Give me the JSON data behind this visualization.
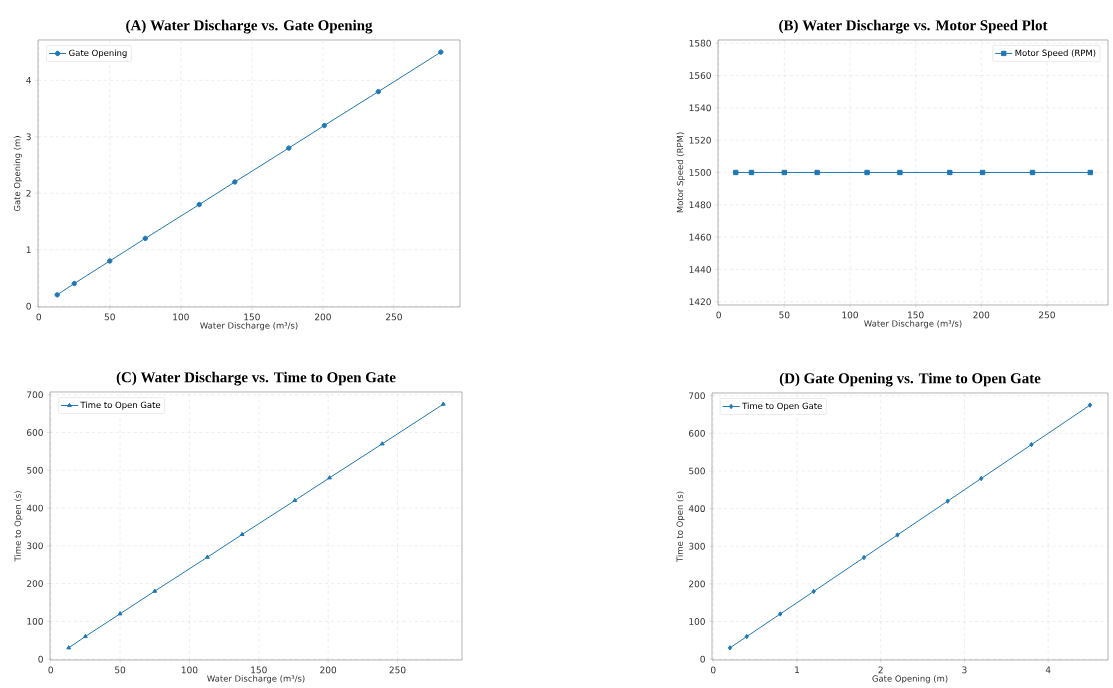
{
  "chart_data": [
    {
      "type": "line",
      "title": "(A) Water Discharge vs. Gate Opening",
      "xlabel": "Water Discharge (m³/s)",
      "ylabel": "Gate Opening (m)",
      "x": [
        13,
        25,
        50,
        75,
        113,
        138,
        176,
        201,
        239,
        283
      ],
      "series": [
        {
          "name": "Gate Opening",
          "color": "#1f77b4",
          "values": [
            0.2,
            0.4,
            0.8,
            1.2,
            1.8,
            2.2,
            2.8,
            3.2,
            3.8,
            4.5
          ]
        }
      ],
      "xlim": [
        -0.5,
        296.5
      ],
      "ylim": [
        -0.015,
        4.715
      ],
      "xticks": [
        0,
        50,
        100,
        150,
        200,
        250
      ],
      "yticks": [
        0,
        1,
        2,
        3,
        4
      ],
      "grid": true,
      "legend": "top left",
      "marker": "circle"
    },
    {
      "type": "line",
      "title": "(B) Water Discharge vs. Motor Speed Plot",
      "xlabel": "Water Discharge (m³/s)",
      "ylabel": "Motor Speed (RPM)",
      "x": [
        13,
        25,
        50,
        75,
        113,
        138,
        176,
        201,
        239,
        283
      ],
      "series": [
        {
          "name": "Motor Speed (RPM)",
          "color": "#1f77b4",
          "values": [
            1500,
            1500,
            1500,
            1500,
            1500,
            1500,
            1500,
            1500,
            1500,
            1500
          ]
        }
      ],
      "xlim": [
        -0.5,
        296.5
      ],
      "ylim": [
        1418,
        1582
      ],
      "xticks": [
        0,
        50,
        100,
        150,
        200,
        250
      ],
      "yticks": [
        1420,
        1440,
        1460,
        1480,
        1500,
        1520,
        1540,
        1560,
        1580
      ],
      "grid": true,
      "legend": "top right",
      "marker": "square"
    },
    {
      "type": "line",
      "title": "(C) Water Discharge vs. Time to Open Gate",
      "xlabel": "Water Discharge (m³/s)",
      "ylabel": "Time to Open (s)",
      "x": [
        13,
        25,
        50,
        75,
        113,
        138,
        176,
        201,
        239,
        283
      ],
      "series": [
        {
          "name": "Time to Open Gate",
          "color": "#1f77b4",
          "values": [
            30,
            60,
            120,
            180,
            270,
            330,
            420,
            480,
            570,
            675
          ]
        }
      ],
      "xlim": [
        -0.5,
        296.5
      ],
      "ylim": [
        -2.25,
        707.25
      ],
      "xticks": [
        0,
        50,
        100,
        150,
        200,
        250
      ],
      "yticks": [
        0,
        100,
        200,
        300,
        400,
        500,
        600,
        700
      ],
      "grid": true,
      "legend": "top left",
      "marker": "triangle"
    },
    {
      "type": "line",
      "title": "(D) Gate Opening vs. Time to Open Gate",
      "xlabel": "Gate Opening (m)",
      "ylabel": "Time to Open (s)",
      "x": [
        0.2,
        0.4,
        0.8,
        1.2,
        1.8,
        2.2,
        2.8,
        3.2,
        3.8,
        4.5
      ],
      "series": [
        {
          "name": "Time to Open Gate",
          "color": "#1f77b4",
          "values": [
            30,
            60,
            120,
            180,
            270,
            330,
            420,
            480,
            570,
            675
          ]
        }
      ],
      "xlim": [
        -0.015,
        4.715
      ],
      "ylim": [
        -2.25,
        707.25
      ],
      "xticks": [
        0,
        1,
        2,
        3,
        4
      ],
      "yticks": [
        0,
        100,
        200,
        300,
        400,
        500,
        600,
        700
      ],
      "grid": true,
      "legend": "top left",
      "marker": "diamond"
    }
  ]
}
